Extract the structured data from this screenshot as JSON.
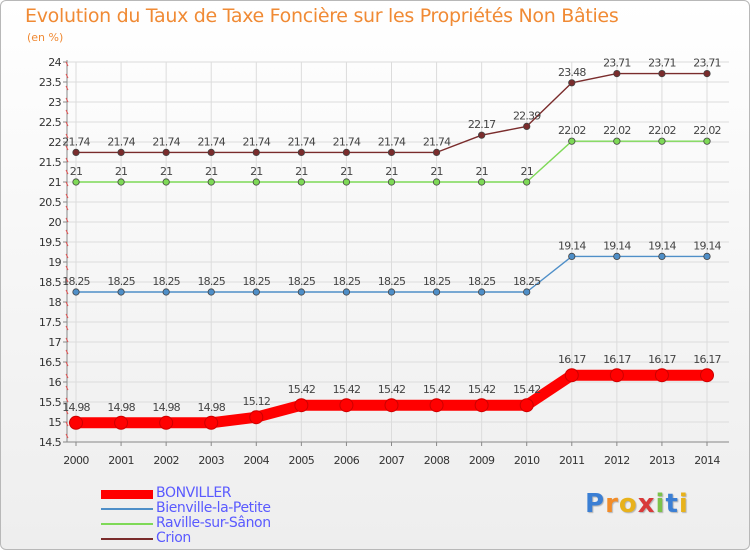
{
  "chart_data": {
    "type": "line",
    "title": "Evolution du Taux de Taxe Foncière sur les Propriétés Non Bâties",
    "unit_label": "(en %)",
    "x": [
      "2000",
      "2001",
      "2002",
      "2003",
      "2004",
      "2005",
      "2006",
      "2007",
      "2008",
      "2009",
      "2010",
      "2011",
      "2012",
      "2013",
      "2014"
    ],
    "ylim": [
      14.5,
      24
    ],
    "yticks": [
      "14.5",
      "15",
      "15.5",
      "16",
      "16.5",
      "17",
      "17.5",
      "18",
      "18.5",
      "19",
      "19.5",
      "20",
      "20.5",
      "21",
      "21.5",
      "22",
      "22.5",
      "23",
      "23.5",
      "24"
    ],
    "grid": true,
    "legend_position": "bottom-left",
    "series": [
      {
        "name": "BONVILLER",
        "color": "#ff0000",
        "highlight": true,
        "values": [
          14.98,
          14.98,
          14.98,
          14.98,
          15.12,
          15.42,
          15.42,
          15.42,
          15.42,
          15.42,
          15.42,
          16.17,
          16.17,
          16.17,
          16.17
        ],
        "labels": [
          "14.98",
          "14.98",
          "14.98",
          "14.98",
          "15.12",
          "15.42",
          "15.42",
          "15.42",
          "15.42",
          "15.42",
          "15.42",
          "16.17",
          "16.17",
          "16.17",
          "16.17"
        ]
      },
      {
        "name": "Bienville-la-Petite",
        "color": "#4f8fc8",
        "highlight": false,
        "values": [
          18.25,
          18.25,
          18.25,
          18.25,
          18.25,
          18.25,
          18.25,
          18.25,
          18.25,
          18.25,
          18.25,
          19.14,
          19.14,
          19.14,
          19.14
        ],
        "labels": [
          "18.25",
          "18.25",
          "18.25",
          "18.25",
          "18.25",
          "18.25",
          "18.25",
          "18.25",
          "18.25",
          "18.25",
          "18.25",
          "19.14",
          "19.14",
          "19.14",
          "19.14"
        ]
      },
      {
        "name": "Raville-sur-Sânon",
        "color": "#7ed957",
        "highlight": false,
        "values": [
          21,
          21,
          21,
          21,
          21,
          21,
          21,
          21,
          21,
          21,
          21,
          22.02,
          22.02,
          22.02,
          22.02
        ],
        "labels": [
          "21",
          "21",
          "21",
          "21",
          "21",
          "21",
          "21",
          "21",
          "21",
          "21",
          "21",
          "22.02",
          "22.02",
          "22.02",
          "22.02"
        ]
      },
      {
        "name": "Crion",
        "color": "#7a2c2c",
        "highlight": false,
        "values": [
          21.74,
          21.74,
          21.74,
          21.74,
          21.74,
          21.74,
          21.74,
          21.74,
          21.74,
          22.17,
          22.39,
          23.48,
          23.71,
          23.71,
          23.71
        ],
        "labels": [
          "21.74",
          "21.74",
          "21.74",
          "21.74",
          "21.74",
          "21.74",
          "21.74",
          "21.74",
          "21.74",
          "22.17",
          "22.39",
          "23.48",
          "23.71",
          "23.71",
          "23.71"
        ]
      }
    ]
  },
  "logo": {
    "text": "Proxiti",
    "letter_colors": [
      "#3b7fd4",
      "#f28c28",
      "#e8b21b",
      "#d83a3a",
      "#7cc24a",
      "#3b7fd4",
      "#e8b21b"
    ]
  }
}
